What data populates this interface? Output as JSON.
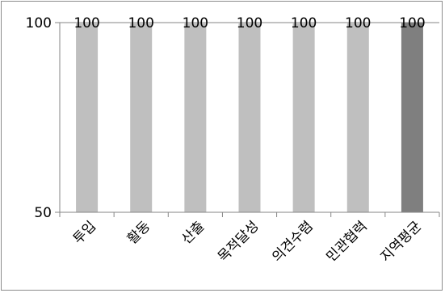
{
  "chart_data": {
    "type": "bar",
    "categories": [
      "투입",
      "활동",
      "산출",
      "목적달성",
      "의견수렴",
      "민관협력",
      "지역평균"
    ],
    "values": [
      100,
      100,
      100,
      100,
      100,
      100,
      100
    ],
    "data_labels": [
      "100",
      "100",
      "100",
      "100",
      "100",
      "100",
      "100"
    ],
    "ylim": [
      50,
      100
    ],
    "yticks": [
      {
        "value": 50,
        "label": "50"
      },
      {
        "value": 100,
        "label": "100"
      }
    ],
    "title": "",
    "xlabel": "",
    "ylabel": "",
    "grid": true,
    "legend": "none",
    "colors": {
      "bar": "#bfbfbf",
      "highlight_bar": "#7f7f7f",
      "axis": "#868686",
      "gridline": "#868686"
    },
    "highlight_index": 6
  }
}
